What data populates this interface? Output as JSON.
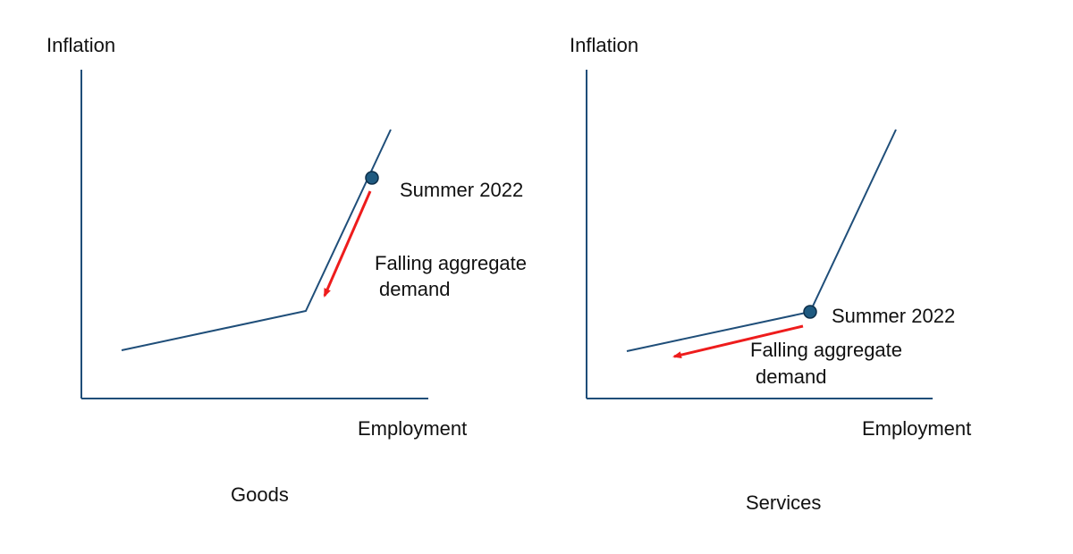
{
  "colors": {
    "curve": "#1f4e79",
    "axis": "#1f4e79",
    "marker_fill": "#1f5a80",
    "arrow": "#ee1c1c",
    "text": "#111111"
  },
  "panels": [
    {
      "y_axis_label": "Inflation",
      "x_axis_label": "Employment",
      "caption": "Goods",
      "point_label": "Summer 2022",
      "arrow_label_line1": "Falling aggregate",
      "arrow_label_line2": "demand"
    },
    {
      "y_axis_label": "Inflation",
      "x_axis_label": "Employment",
      "caption": "Services",
      "point_label": "Summer 2022",
      "arrow_label_line1": "Falling aggregate",
      "arrow_label_line2": "demand"
    }
  ]
}
